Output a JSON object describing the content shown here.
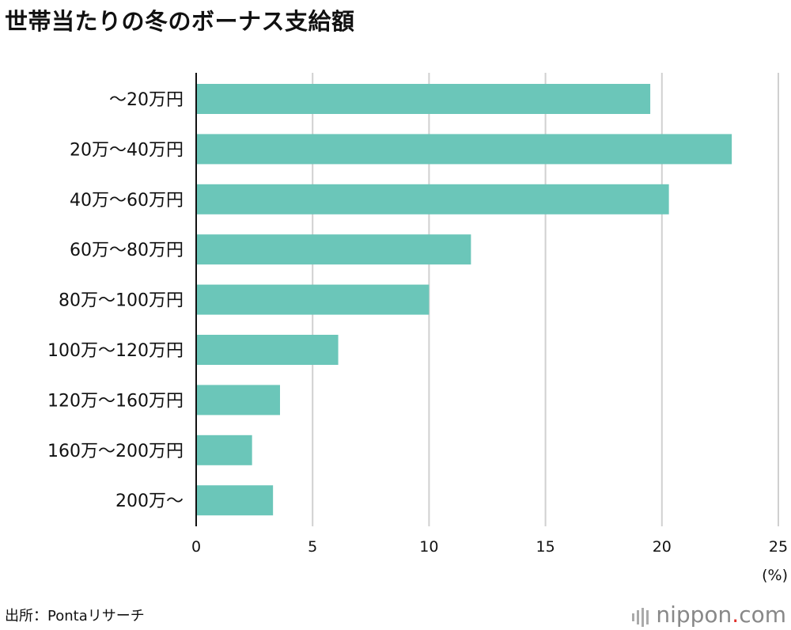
{
  "chart_data": {
    "type": "bar",
    "orientation": "horizontal",
    "title": "世帯当たりの冬のボーナス支給額",
    "categories": [
      "～20万円",
      "20万～40万円",
      "40万～60万円",
      "60万～80万円",
      "80万～100万円",
      "100万～120万円",
      "120万～160万円",
      "160万～200万円",
      "200万～"
    ],
    "values": [
      19.5,
      23.0,
      20.3,
      11.8,
      10.0,
      6.1,
      3.6,
      2.4,
      3.3
    ],
    "xlabel": "(%)",
    "xlim": [
      0,
      25
    ],
    "xticks": [
      "0",
      "5",
      "10",
      "15",
      "20",
      "25"
    ],
    "grid": true,
    "bar_color": "#6bc6b9"
  },
  "source": "出所：Pontaリサーチ",
  "logo": {
    "name": "nippon",
    "dot": ".",
    "tld": "com"
  }
}
